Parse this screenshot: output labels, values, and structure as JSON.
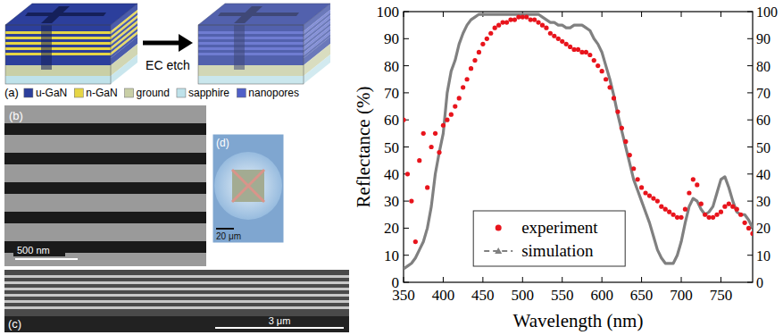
{
  "chart_data": {
    "type": "scatter",
    "xlabel": "Wavelength (nm)",
    "ylabel": "Reflectance (%)",
    "xlim": [
      350,
      790
    ],
    "xticks": [
      350,
      400,
      450,
      500,
      550,
      600,
      650,
      700,
      750
    ],
    "ylim": [
      0,
      100
    ],
    "yticks": [
      0,
      10,
      20,
      30,
      40,
      50,
      60,
      70,
      80,
      90,
      100
    ],
    "y2lim": [
      0,
      100
    ],
    "y2ticks": [
      0,
      10,
      20,
      30,
      40,
      50,
      60,
      70,
      80,
      90,
      100
    ],
    "grid": false,
    "legend": "lower center",
    "x": [
      350,
      355,
      360,
      365,
      370,
      375,
      380,
      385,
      390,
      395,
      400,
      405,
      410,
      415,
      420,
      425,
      430,
      435,
      440,
      445,
      450,
      455,
      460,
      465,
      470,
      475,
      480,
      485,
      490,
      495,
      500,
      505,
      510,
      515,
      520,
      525,
      530,
      535,
      540,
      545,
      550,
      555,
      560,
      565,
      570,
      575,
      580,
      585,
      590,
      595,
      600,
      605,
      610,
      615,
      620,
      625,
      630,
      635,
      640,
      645,
      650,
      655,
      660,
      665,
      670,
      675,
      680,
      685,
      690,
      695,
      700,
      705,
      710,
      715,
      720,
      725,
      730,
      735,
      740,
      745,
      750,
      755,
      760,
      765,
      770,
      775,
      780,
      785,
      790
    ],
    "series": [
      {
        "name": "experiment",
        "type": "scatter",
        "marker": "circle",
        "color": "#e8141c",
        "values": [
          60,
          40,
          30,
          15,
          45,
          55,
          35,
          50,
          55,
          48,
          58,
          60,
          62,
          65,
          68,
          72,
          75,
          79,
          82,
          85,
          88,
          90,
          92,
          94,
          95,
          96,
          96,
          97,
          97,
          98,
          98,
          98,
          97,
          97,
          96,
          95,
          94,
          92,
          91,
          90,
          89,
          88,
          87,
          86,
          86,
          85,
          85,
          84,
          82,
          80,
          78,
          75,
          72,
          68,
          63,
          57,
          52,
          47,
          42,
          38,
          35,
          33,
          32,
          31,
          30,
          28,
          27,
          26,
          25,
          24,
          24,
          27,
          33,
          38,
          36,
          29,
          25,
          24,
          24,
          25,
          26,
          28,
          29,
          28,
          27,
          25,
          22,
          20,
          18
        ]
      },
      {
        "name": "simulation",
        "type": "line",
        "line_style": "solid",
        "color": "#808080",
        "values": [
          5,
          6,
          7,
          9,
          12,
          15,
          20,
          28,
          40,
          48,
          55,
          70,
          78,
          82,
          88,
          92,
          95,
          97,
          98,
          99,
          99,
          99,
          99,
          99,
          99,
          99,
          99,
          99,
          99,
          99,
          99,
          99,
          99,
          99,
          99,
          98,
          97,
          96,
          96,
          95,
          95,
          94,
          94,
          95,
          95,
          95,
          94,
          93,
          90,
          88,
          85,
          80,
          75,
          69,
          62,
          56,
          50,
          44,
          38,
          34,
          30,
          26,
          22,
          17,
          12,
          9,
          7,
          7,
          7,
          10,
          15,
          22,
          28,
          31,
          30,
          27,
          25,
          26,
          28,
          33,
          38,
          39,
          35,
          30,
          26,
          25,
          25,
          23,
          20
        ]
      }
    ]
  },
  "figure": {
    "schematic": {
      "label": "(a)",
      "arrow_label": "EC etch",
      "legend": [
        {
          "name": "u-GaN",
          "color": "#2c3f9c"
        },
        {
          "name": "n-GaN",
          "color": "#e6d645"
        },
        {
          "name": "ground",
          "color": "#c9cfa6"
        },
        {
          "name": "sapphire",
          "color": "#bfe2ea"
        },
        {
          "name": "nanopores",
          "color": "#5060c8"
        }
      ]
    },
    "sem_top": {
      "label": "(b)",
      "scale_bar": "500 nm"
    },
    "optical": {
      "label": "(d)",
      "scale_bar": "20 μm"
    },
    "sem_cross": {
      "label": "(c)",
      "scale_bar": "3 μm"
    }
  }
}
